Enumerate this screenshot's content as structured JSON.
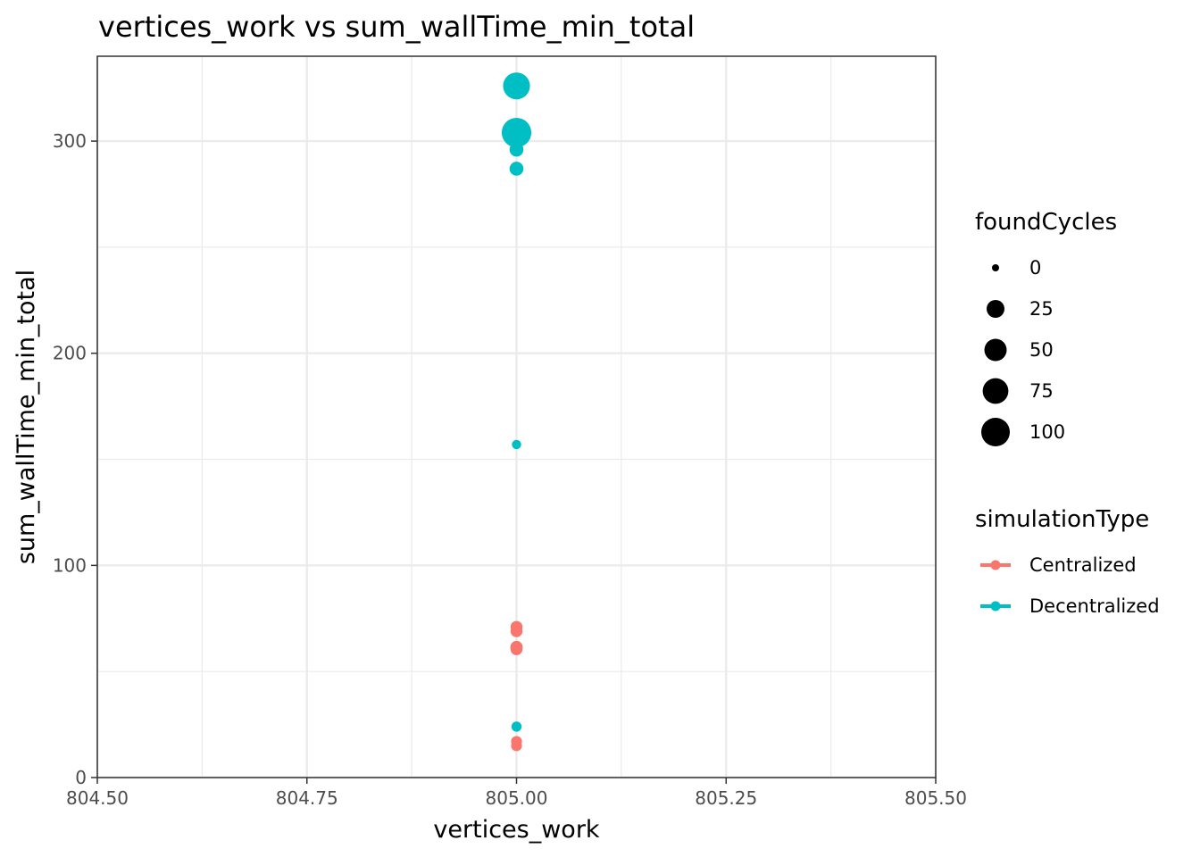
{
  "chart_data": {
    "type": "scatter",
    "title": "vertices_work  vs  sum_wallTime_min_total",
    "xlabel": "vertices_work",
    "ylabel": "sum_wallTime_min_total",
    "xlim": [
      804.5,
      805.5
    ],
    "ylim": [
      0,
      340
    ],
    "x_ticks": [
      804.5,
      804.75,
      805.0,
      805.25,
      805.5
    ],
    "x_tick_labels": [
      "804.50",
      "804.75",
      "805.00",
      "805.25",
      "805.50"
    ],
    "y_ticks": [
      0,
      100,
      200,
      300
    ],
    "y_tick_labels": [
      "0",
      "100",
      "200",
      "300"
    ],
    "grid": true,
    "series": [
      {
        "name": "Centralized",
        "color": "#F8766D",
        "points": [
          {
            "x": 805.0,
            "y": 71,
            "size": 5
          },
          {
            "x": 805.0,
            "y": 69,
            "size": 5
          },
          {
            "x": 805.0,
            "y": 61.5,
            "size": 6
          },
          {
            "x": 805.0,
            "y": 60.5,
            "size": 5
          },
          {
            "x": 805.0,
            "y": 17,
            "size": 3
          },
          {
            "x": 805.0,
            "y": 15,
            "size": 3
          }
        ]
      },
      {
        "name": "Decentralized",
        "color": "#00BFC4",
        "points": [
          {
            "x": 805.0,
            "y": 326,
            "size": 85
          },
          {
            "x": 805.0,
            "y": 304,
            "size": 110
          },
          {
            "x": 805.0,
            "y": 296,
            "size": 10
          },
          {
            "x": 805.0,
            "y": 287,
            "size": 10
          },
          {
            "x": 805.0,
            "y": 157,
            "size": 1
          },
          {
            "x": 805.0,
            "y": 24,
            "size": 2
          }
        ]
      }
    ],
    "legend": {
      "placement": "right",
      "size_title": "foundCycles",
      "size_entries": [
        {
          "label": "0",
          "value": 0
        },
        {
          "label": "25",
          "value": 25
        },
        {
          "label": "50",
          "value": 50
        },
        {
          "label": "75",
          "value": 75
        },
        {
          "label": "100",
          "value": 100
        }
      ],
      "color_title": "simulationType",
      "color_entries": [
        {
          "label": "Centralized",
          "color": "#F8766D"
        },
        {
          "label": "Decentralized",
          "color": "#00BFC4"
        }
      ]
    }
  }
}
